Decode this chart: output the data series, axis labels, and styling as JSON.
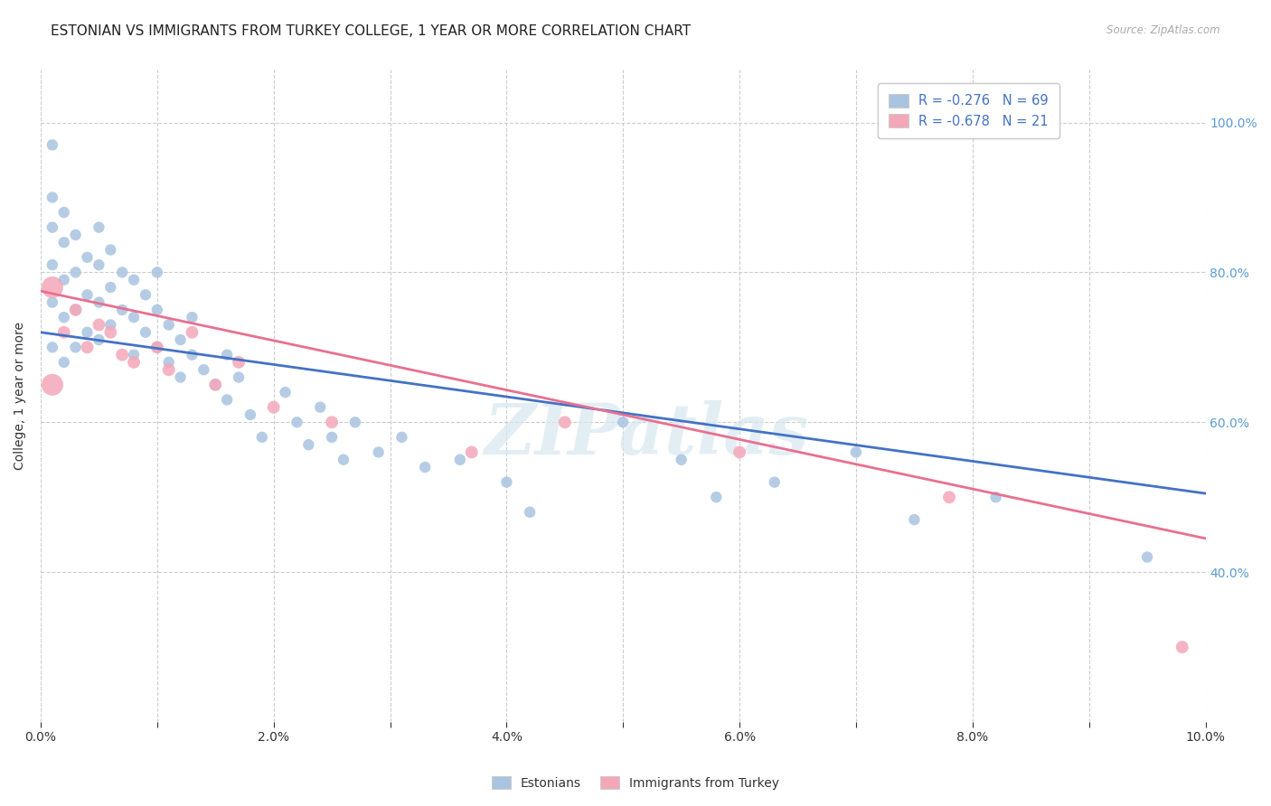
{
  "title": "ESTONIAN VS IMMIGRANTS FROM TURKEY COLLEGE, 1 YEAR OR MORE CORRELATION CHART",
  "source": "Source: ZipAtlas.com",
  "ylabel": "College, 1 year or more",
  "xmin": 0.0,
  "xmax": 0.1,
  "ymin": 0.2,
  "ymax": 1.07,
  "x_tick_labels": [
    "0.0%",
    "",
    "2.0%",
    "",
    "4.0%",
    "",
    "6.0%",
    "",
    "8.0%",
    "",
    "10.0%"
  ],
  "x_tick_values": [
    0.0,
    0.01,
    0.02,
    0.03,
    0.04,
    0.05,
    0.06,
    0.07,
    0.08,
    0.09,
    0.1
  ],
  "y_tick_labels": [
    "40.0%",
    "60.0%",
    "80.0%",
    "100.0%"
  ],
  "y_tick_values": [
    0.4,
    0.6,
    0.8,
    1.0
  ],
  "blue_color": "#a8c4e0",
  "blue_line_color": "#4472c4",
  "pink_color": "#f4a7b9",
  "pink_line_color": "#e87090",
  "legend_blue_label": "R = -0.276   N = 69",
  "legend_pink_label": "R = -0.678   N = 21",
  "legend1_label": "Estonians",
  "legend2_label": "Immigrants from Turkey",
  "watermark": "ZIPatlas",
  "blue_x": [
    0.001,
    0.001,
    0.001,
    0.001,
    0.001,
    0.001,
    0.002,
    0.002,
    0.002,
    0.002,
    0.002,
    0.003,
    0.003,
    0.003,
    0.003,
    0.004,
    0.004,
    0.004,
    0.005,
    0.005,
    0.005,
    0.005,
    0.006,
    0.006,
    0.006,
    0.007,
    0.007,
    0.008,
    0.008,
    0.008,
    0.009,
    0.009,
    0.01,
    0.01,
    0.01,
    0.011,
    0.011,
    0.012,
    0.012,
    0.013,
    0.013,
    0.014,
    0.015,
    0.016,
    0.016,
    0.017,
    0.018,
    0.019,
    0.021,
    0.022,
    0.023,
    0.024,
    0.025,
    0.026,
    0.027,
    0.029,
    0.031,
    0.033,
    0.036,
    0.04,
    0.042,
    0.05,
    0.055,
    0.058,
    0.063,
    0.07,
    0.075,
    0.082,
    0.095
  ],
  "blue_y": [
    0.97,
    0.9,
    0.86,
    0.81,
    0.76,
    0.7,
    0.88,
    0.84,
    0.79,
    0.74,
    0.68,
    0.85,
    0.8,
    0.75,
    0.7,
    0.82,
    0.77,
    0.72,
    0.86,
    0.81,
    0.76,
    0.71,
    0.83,
    0.78,
    0.73,
    0.8,
    0.75,
    0.79,
    0.74,
    0.69,
    0.77,
    0.72,
    0.8,
    0.75,
    0.7,
    0.73,
    0.68,
    0.71,
    0.66,
    0.74,
    0.69,
    0.67,
    0.65,
    0.69,
    0.63,
    0.66,
    0.61,
    0.58,
    0.64,
    0.6,
    0.57,
    0.62,
    0.58,
    0.55,
    0.6,
    0.56,
    0.58,
    0.54,
    0.55,
    0.52,
    0.48,
    0.6,
    0.55,
    0.5,
    0.52,
    0.56,
    0.47,
    0.5,
    0.42
  ],
  "blue_sizes": [
    80,
    80,
    80,
    80,
    80,
    80,
    80,
    80,
    80,
    80,
    80,
    80,
    80,
    80,
    80,
    80,
    80,
    80,
    80,
    80,
    80,
    80,
    80,
    80,
    80,
    80,
    80,
    80,
    80,
    80,
    80,
    80,
    80,
    80,
    80,
    80,
    80,
    80,
    80,
    80,
    80,
    80,
    80,
    80,
    80,
    80,
    80,
    80,
    80,
    80,
    80,
    80,
    80,
    80,
    80,
    80,
    80,
    80,
    80,
    80,
    80,
    80,
    80,
    80,
    80,
    80,
    80,
    80,
    80
  ],
  "pink_x": [
    0.001,
    0.001,
    0.002,
    0.003,
    0.004,
    0.005,
    0.006,
    0.007,
    0.008,
    0.01,
    0.011,
    0.013,
    0.015,
    0.017,
    0.02,
    0.025,
    0.037,
    0.045,
    0.06,
    0.078,
    0.098
  ],
  "pink_y": [
    0.78,
    0.65,
    0.72,
    0.75,
    0.7,
    0.73,
    0.72,
    0.69,
    0.68,
    0.7,
    0.67,
    0.72,
    0.65,
    0.68,
    0.62,
    0.6,
    0.56,
    0.6,
    0.56,
    0.5,
    0.3
  ],
  "pink_sizes": [
    300,
    300,
    100,
    100,
    100,
    100,
    100,
    100,
    100,
    100,
    100,
    100,
    100,
    100,
    100,
    100,
    100,
    100,
    100,
    100,
    100
  ],
  "blue_trend_x": [
    0.0,
    0.1
  ],
  "blue_trend_y": [
    0.72,
    0.505
  ],
  "pink_trend_x": [
    0.0,
    0.1
  ],
  "pink_trend_y": [
    0.775,
    0.445
  ],
  "grid_color": "#cccccc",
  "bg_color": "#ffffff",
  "title_fontsize": 11,
  "axis_label_fontsize": 10,
  "tick_fontsize": 10,
  "right_tick_color": "#5b9bd5"
}
